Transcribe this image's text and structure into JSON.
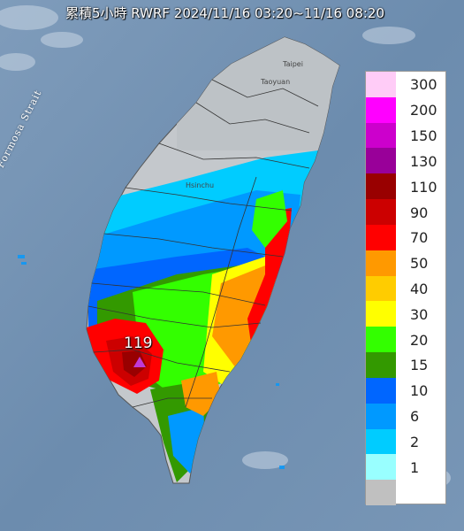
{
  "title": "累積5小時 RWRF 2024/11/16 03:20~11/16 08:20",
  "labels": {
    "strait": "Formosa Strait",
    "taipei": "Taipei",
    "taoyuan": "Taoyuan",
    "hsinchu": "Hsinchu"
  },
  "peak": {
    "value": "119"
  },
  "legend": [
    {
      "label": "300",
      "color": "#ffccf7"
    },
    {
      "label": "200",
      "color": "#ff00ff"
    },
    {
      "label": "150",
      "color": "#cc00cc"
    },
    {
      "label": "130",
      "color": "#990099"
    },
    {
      "label": "110",
      "color": "#990000"
    },
    {
      "label": "90",
      "color": "#cc0000"
    },
    {
      "label": "70",
      "color": "#ff0000"
    },
    {
      "label": "50",
      "color": "#ff9900"
    },
    {
      "label": "40",
      "color": "#ffcc00"
    },
    {
      "label": "30",
      "color": "#ffff00"
    },
    {
      "label": "20",
      "color": "#33ff00"
    },
    {
      "label": "15",
      "color": "#339900"
    },
    {
      "label": "10",
      "color": "#0066ff"
    },
    {
      "label": "6",
      "color": "#0099ff"
    },
    {
      "label": "2",
      "color": "#00ccff"
    },
    {
      "label": "1",
      "color": "#99ffff"
    },
    {
      "label": "",
      "color": "#c0c0c0"
    }
  ]
}
